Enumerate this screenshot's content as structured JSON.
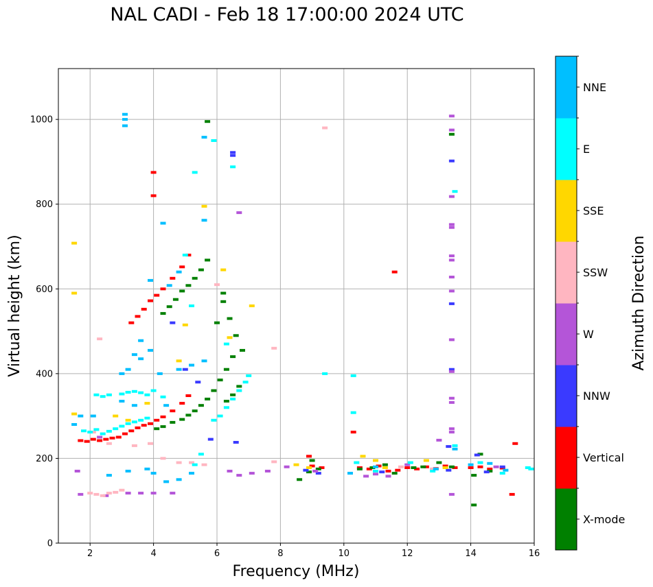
{
  "chart_data": {
    "type": "scatter",
    "title": "NAL CADI - Feb 18 17:00:00 2024 UTC",
    "xlabel": "Frequency (MHz)",
    "ylabel": "Virtual height (km)",
    "xlim": [
      1,
      16
    ],
    "ylim": [
      0,
      1120
    ],
    "xticks": [
      2,
      4,
      6,
      8,
      10,
      12,
      14,
      16
    ],
    "yticks": [
      0,
      200,
      400,
      600,
      800,
      1000
    ],
    "grid": true,
    "colorbar": {
      "label": "Azimuth Direction",
      "categories": [
        {
          "name": "X-mode",
          "color": "#008000"
        },
        {
          "name": "Vertical",
          "color": "#ff0000"
        },
        {
          "name": "NNW",
          "color": "#3a3aff"
        },
        {
          "name": "W",
          "color": "#b455d8"
        },
        {
          "name": "SSW",
          "color": "#ffb6c1"
        },
        {
          "name": "SSE",
          "color": "#ffd700"
        },
        {
          "name": "E",
          "color": "#00ffff"
        },
        {
          "name": "NNE",
          "color": "#00bfff"
        }
      ]
    },
    "traces": [
      {
        "category": "Vertical",
        "points": [
          [
            1.7,
            242
          ],
          [
            1.9,
            240
          ],
          [
            2.1,
            245
          ],
          [
            2.3,
            242
          ],
          [
            2.5,
            245
          ],
          [
            2.7,
            248
          ],
          [
            2.9,
            250
          ],
          [
            3.1,
            258
          ],
          [
            3.3,
            265
          ],
          [
            3.5,
            272
          ],
          [
            3.7,
            278
          ],
          [
            3.9,
            282
          ],
          [
            4.1,
            290
          ],
          [
            4.3,
            298
          ],
          [
            4.6,
            312
          ],
          [
            4.9,
            330
          ],
          [
            5.1,
            348
          ],
          [
            3.3,
            520
          ],
          [
            3.5,
            535
          ],
          [
            3.7,
            552
          ],
          [
            3.9,
            572
          ],
          [
            4.1,
            585
          ],
          [
            4.3,
            600
          ],
          [
            4.6,
            625
          ],
          [
            4.9,
            652
          ],
          [
            5.1,
            680
          ],
          [
            10.5,
            178
          ],
          [
            10.8,
            175
          ],
          [
            11.1,
            182
          ],
          [
            11.4,
            170
          ],
          [
            11.7,
            172
          ],
          [
            12.0,
            178
          ],
          [
            12.3,
            175
          ],
          [
            12.6,
            180
          ],
          [
            12.9,
            176
          ],
          [
            13.2,
            182
          ],
          [
            13.5,
            178
          ],
          [
            14.0,
            178
          ],
          [
            14.3,
            180
          ],
          [
            14.6,
            175
          ],
          [
            15.0,
            177
          ],
          [
            15.3,
            115
          ],
          [
            15.4,
            235
          ],
          [
            11.6,
            640
          ],
          [
            9.0,
            182
          ],
          [
            9.3,
            178
          ],
          [
            8.9,
            205
          ],
          [
            4.0,
            820
          ],
          [
            4.0,
            875
          ],
          [
            10.3,
            262
          ]
        ]
      },
      {
        "category": "X-mode",
        "points": [
          [
            4.1,
            270
          ],
          [
            4.3,
            275
          ],
          [
            4.6,
            285
          ],
          [
            4.9,
            292
          ],
          [
            5.1,
            302
          ],
          [
            5.3,
            312
          ],
          [
            5.5,
            325
          ],
          [
            5.7,
            340
          ],
          [
            5.9,
            360
          ],
          [
            6.1,
            385
          ],
          [
            6.3,
            410
          ],
          [
            6.5,
            440
          ],
          [
            4.3,
            542
          ],
          [
            4.5,
            558
          ],
          [
            4.7,
            575
          ],
          [
            4.9,
            595
          ],
          [
            5.1,
            608
          ],
          [
            5.3,
            625
          ],
          [
            5.5,
            645
          ],
          [
            5.7,
            668
          ],
          [
            6.2,
            570
          ],
          [
            6.2,
            590
          ],
          [
            6.4,
            530
          ],
          [
            6.6,
            490
          ],
          [
            6.8,
            455
          ],
          [
            8.6,
            150
          ],
          [
            8.9,
            168
          ],
          [
            9.0,
            195
          ],
          [
            9.2,
            175
          ],
          [
            10.5,
            175
          ],
          [
            10.9,
            178
          ],
          [
            11.3,
            185
          ],
          [
            11.6,
            165
          ],
          [
            12.2,
            178
          ],
          [
            12.5,
            180
          ],
          [
            13.0,
            190
          ],
          [
            13.4,
            180
          ],
          [
            14.1,
            160
          ],
          [
            14.3,
            210
          ],
          [
            14.6,
            170
          ],
          [
            14.1,
            90
          ],
          [
            13.4,
            965
          ],
          [
            5.7,
            995
          ],
          [
            6.0,
            520
          ],
          [
            6.3,
            335
          ],
          [
            6.5,
            350
          ],
          [
            6.7,
            370
          ]
        ]
      },
      {
        "category": "NNW",
        "points": [
          [
            6.5,
            922
          ],
          [
            6.5,
            915
          ],
          [
            13.4,
            902
          ],
          [
            13.4,
            565
          ],
          [
            13.4,
            410
          ],
          [
            13.3,
            228
          ],
          [
            13.3,
            172
          ],
          [
            14.2,
            208
          ],
          [
            14.5,
            168
          ],
          [
            15.0,
            180
          ],
          [
            9.2,
            165
          ],
          [
            8.8,
            172
          ],
          [
            11.2,
            168
          ],
          [
            5.8,
            245
          ],
          [
            6.6,
            238
          ],
          [
            5.4,
            380
          ],
          [
            5.0,
            410
          ],
          [
            4.6,
            520
          ]
        ]
      },
      {
        "category": "W",
        "points": [
          [
            13.4,
            1008
          ],
          [
            13.4,
            975
          ],
          [
            13.4,
            818
          ],
          [
            13.4,
            752
          ],
          [
            13.4,
            745
          ],
          [
            13.4,
            678
          ],
          [
            13.4,
            668
          ],
          [
            13.4,
            628
          ],
          [
            13.4,
            595
          ],
          [
            13.4,
            480
          ],
          [
            13.4,
            405
          ],
          [
            13.4,
            342
          ],
          [
            13.4,
            332
          ],
          [
            13.4,
            270
          ],
          [
            13.4,
            262
          ],
          [
            13.4,
            115
          ],
          [
            13.0,
            243
          ],
          [
            6.7,
            780
          ],
          [
            6.4,
            170
          ],
          [
            6.7,
            160
          ],
          [
            7.1,
            165
          ],
          [
            7.6,
            170
          ],
          [
            8.2,
            180
          ],
          [
            9.1,
            170
          ],
          [
            10.7,
            158
          ],
          [
            11.0,
            163
          ],
          [
            11.4,
            158
          ],
          [
            12.0,
            185
          ],
          [
            12.8,
            175
          ],
          [
            14.8,
            180
          ],
          [
            1.6,
            170
          ],
          [
            1.7,
            115
          ],
          [
            2.5,
            112
          ],
          [
            3.2,
            118
          ],
          [
            3.6,
            118
          ],
          [
            4.0,
            118
          ],
          [
            4.6,
            118
          ],
          [
            2.3,
            250
          ]
        ]
      },
      {
        "category": "SSW",
        "points": [
          [
            2.0,
            118
          ],
          [
            2.2,
            115
          ],
          [
            2.4,
            112
          ],
          [
            2.6,
            118
          ],
          [
            2.8,
            120
          ],
          [
            3.0,
            125
          ],
          [
            2.3,
            482
          ],
          [
            9.4,
            980
          ],
          [
            7.8,
            460
          ],
          [
            2.1,
            262
          ],
          [
            2.6,
            235
          ],
          [
            3.4,
            230
          ],
          [
            3.9,
            235
          ],
          [
            4.3,
            200
          ],
          [
            4.8,
            190
          ],
          [
            5.2,
            190
          ],
          [
            5.6,
            185
          ],
          [
            6.0,
            610
          ],
          [
            12.8,
            175
          ],
          [
            11.8,
            180
          ],
          [
            7.8,
            192
          ]
        ]
      },
      {
        "category": "SSE",
        "points": [
          [
            1.5,
            708
          ],
          [
            1.5,
            590
          ],
          [
            1.5,
            305
          ],
          [
            5.6,
            795
          ],
          [
            6.2,
            645
          ],
          [
            7.1,
            560
          ],
          [
            6.4,
            485
          ],
          [
            5.0,
            515
          ],
          [
            4.8,
            430
          ],
          [
            3.8,
            330
          ],
          [
            3.2,
            290
          ],
          [
            2.8,
            300
          ],
          [
            10.6,
            205
          ],
          [
            11.0,
            195
          ],
          [
            11.3,
            178
          ],
          [
            8.5,
            185
          ],
          [
            8.9,
            178
          ],
          [
            12.6,
            195
          ],
          [
            13.2,
            178
          ]
        ]
      },
      {
        "category": "E",
        "points": [
          [
            2.2,
            350
          ],
          [
            2.4,
            346
          ],
          [
            2.6,
            350
          ],
          [
            3.0,
            352
          ],
          [
            3.2,
            356
          ],
          [
            3.4,
            358
          ],
          [
            3.6,
            355
          ],
          [
            3.8,
            350
          ],
          [
            4.0,
            360
          ],
          [
            4.3,
            345
          ],
          [
            1.8,
            265
          ],
          [
            2.0,
            262
          ],
          [
            2.2,
            268
          ],
          [
            2.4,
            258
          ],
          [
            2.6,
            264
          ],
          [
            2.8,
            270
          ],
          [
            3.0,
            276
          ],
          [
            3.2,
            282
          ],
          [
            3.4,
            286
          ],
          [
            3.6,
            290
          ],
          [
            3.8,
            295
          ],
          [
            5.9,
            290
          ],
          [
            6.1,
            300
          ],
          [
            6.3,
            320
          ],
          [
            6.5,
            340
          ],
          [
            6.7,
            360
          ],
          [
            6.9,
            380
          ],
          [
            7.0,
            395
          ],
          [
            6.5,
            888
          ],
          [
            5.3,
            875
          ],
          [
            5.9,
            950
          ],
          [
            5.0,
            680
          ],
          [
            6.3,
            470
          ],
          [
            5.2,
            560
          ],
          [
            9.4,
            400
          ],
          [
            10.3,
            395
          ],
          [
            10.3,
            308
          ],
          [
            10.4,
            190
          ],
          [
            11.0,
            170
          ],
          [
            12.1,
            190
          ],
          [
            12.8,
            170
          ],
          [
            13.5,
            230
          ],
          [
            13.5,
            830
          ],
          [
            14.3,
            190
          ],
          [
            15.0,
            165
          ],
          [
            15.8,
            178
          ],
          [
            15.9,
            175
          ],
          [
            5.5,
            210
          ],
          [
            5.3,
            185
          ]
        ]
      },
      {
        "category": "NNE",
        "points": [
          [
            3.1,
            1012
          ],
          [
            3.1,
            1000
          ],
          [
            3.1,
            985
          ],
          [
            5.6,
            958
          ],
          [
            4.3,
            755
          ],
          [
            5.6,
            762
          ],
          [
            4.8,
            640
          ],
          [
            3.9,
            620
          ],
          [
            4.5,
            608
          ],
          [
            3.6,
            478
          ],
          [
            3.9,
            455
          ],
          [
            3.4,
            445
          ],
          [
            3.6,
            435
          ],
          [
            3.2,
            410
          ],
          [
            3.0,
            400
          ],
          [
            4.2,
            400
          ],
          [
            4.8,
            410
          ],
          [
            5.2,
            420
          ],
          [
            5.6,
            430
          ],
          [
            3.4,
            325
          ],
          [
            3.0,
            335
          ],
          [
            4.4,
            325
          ],
          [
            2.1,
            300
          ],
          [
            1.7,
            300
          ],
          [
            1.5,
            280
          ],
          [
            2.6,
            160
          ],
          [
            3.2,
            170
          ],
          [
            3.8,
            175
          ],
          [
            4.0,
            165
          ],
          [
            4.4,
            145
          ],
          [
            4.8,
            150
          ],
          [
            5.2,
            165
          ],
          [
            13.5,
            222
          ],
          [
            12.9,
            175
          ],
          [
            14.0,
            185
          ],
          [
            14.6,
            188
          ],
          [
            15.1,
            172
          ],
          [
            10.2,
            165
          ],
          [
            11.0,
            180
          ]
        ]
      }
    ]
  }
}
